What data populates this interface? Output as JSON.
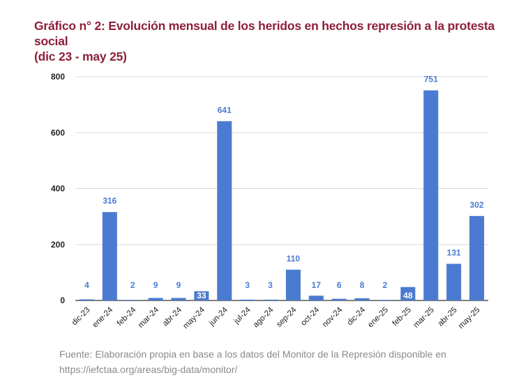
{
  "header": {
    "title_line1": "Gráfico n° 2: Evolución mensual de los heridos en hechos represión a la protesta social",
    "title_line2": "(dic 23 - may 25)"
  },
  "footer": {
    "source_line1": "Fuente: Elaboración propia en base a los datos del Monitor de la Represión disponible en",
    "source_line2": "https://iefctaa.org/areas/big-data/monitor/"
  },
  "chart_data": {
    "type": "bar",
    "categories": [
      "dic-23",
      "ene-24",
      "feb-24",
      "mar-24",
      "abr-24",
      "may-24",
      "jun-24",
      "jul-24",
      "ago-24",
      "sep-24",
      "oct-24",
      "nov-24",
      "dic-24",
      "ene-25",
      "feb-25",
      "mar-25",
      "abr-25",
      "may-25"
    ],
    "values": [
      4,
      316,
      2,
      9,
      9,
      33,
      641,
      3,
      3,
      110,
      17,
      6,
      8,
      2,
      48,
      751,
      131,
      302
    ],
    "data_labels": [
      "4",
      "316",
      "2",
      "9",
      "9",
      "33",
      "641",
      "3",
      "3",
      "110",
      "17",
      "6",
      "8",
      "2",
      "48",
      "751",
      "131",
      "302"
    ],
    "yticks": [
      "0",
      "200",
      "400",
      "600",
      "800"
    ],
    "ylim": [
      0,
      800
    ],
    "grid": true,
    "legend": "none",
    "bar_color": "#4a7bd0",
    "gridline_color": "#d9d9d9"
  }
}
